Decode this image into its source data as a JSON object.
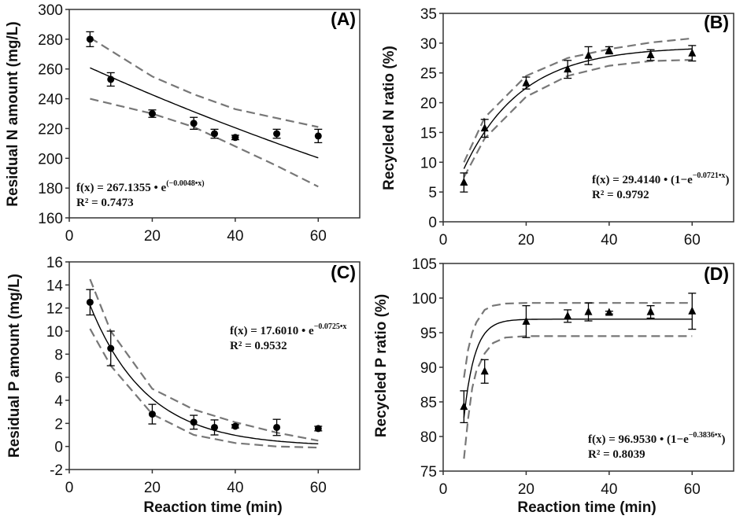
{
  "chart_data": [
    {
      "type": "scatter",
      "panel_label": "(A)",
      "xlabel": "",
      "ylabel": "Residual N amount (mg/L)",
      "xlim": [
        0,
        70
      ],
      "ylim": [
        160,
        300
      ],
      "xticks": [
        "0",
        "20",
        "40",
        "60"
      ],
      "xtick_values": [
        0,
        20,
        40,
        60
      ],
      "yticks": [
        "160",
        "180",
        "200",
        "220",
        "240",
        "260",
        "280",
        "300"
      ],
      "ytick_values": [
        160,
        180,
        200,
        220,
        240,
        260,
        280,
        300
      ],
      "marker": "circle",
      "x": [
        5,
        10,
        20,
        30,
        35,
        40,
        50,
        60
      ],
      "y": [
        280,
        253,
        230,
        223.5,
        216.5,
        214,
        216.5,
        215
      ],
      "error": [
        5,
        4.5,
        2.5,
        4,
        3,
        1.5,
        3,
        4.5
      ],
      "fit": {
        "model": "exp_decay",
        "a": 267.1355,
        "b": 0.0048,
        "x_range": [
          5,
          60
        ]
      },
      "band_upper": {
        "x": [
          5,
          20,
          30,
          40,
          50,
          60
        ],
        "y": [
          281,
          255,
          243,
          233,
          227,
          221
        ]
      },
      "band_lower": {
        "x": [
          5,
          20,
          30,
          40,
          50,
          60
        ],
        "y": [
          240,
          230,
          221,
          208,
          195,
          181
        ]
      },
      "equation": {
        "main": "f(x) = 267.1355 • e",
        "sup": "(−0.0048•x)",
        "tail": "",
        "r2": "R² = 0.7473"
      }
    },
    {
      "type": "scatter",
      "panel_label": "(B)",
      "xlabel": "",
      "ylabel": "Recycled N ratio (%)",
      "xlim": [
        0,
        70
      ],
      "ylim": [
        0,
        35
      ],
      "xticks": [
        "0",
        "20",
        "40",
        "60"
      ],
      "xtick_values": [
        0,
        20,
        40,
        60
      ],
      "yticks": [
        "0",
        "5",
        "10",
        "15",
        "20",
        "25",
        "30",
        "35"
      ],
      "ytick_values": [
        0,
        5,
        10,
        15,
        20,
        25,
        30,
        35
      ],
      "marker": "triangle",
      "x": [
        5,
        10,
        20,
        30,
        35,
        40,
        50,
        60
      ],
      "y": [
        6.6,
        15.7,
        23.3,
        25.6,
        27.9,
        28.8,
        28.0,
        28.3
      ],
      "error": [
        1.6,
        1.5,
        1.0,
        1.5,
        1.5,
        0.6,
        0.9,
        1.3
      ],
      "fit": {
        "model": "exp_rise",
        "a": 29.414,
        "b": 0.0721,
        "x_range": [
          5,
          60
        ]
      },
      "band_upper": {
        "x": [
          5,
          10,
          20,
          30,
          40,
          50,
          60
        ],
        "y": [
          10,
          17.5,
          24.5,
          27.5,
          29,
          30.1,
          30.8
        ]
      },
      "band_lower": {
        "x": [
          5,
          10,
          20,
          30,
          40,
          50,
          60
        ],
        "y": [
          7.5,
          14,
          21,
          24.5,
          26.2,
          27,
          27.2
        ]
      },
      "equation": {
        "main": "f(x) = 29.4140 • (1−e",
        "sup": "−0.0721•x",
        "tail": ")",
        "r2": "R² = 0.9792"
      }
    },
    {
      "type": "scatter",
      "panel_label": "(C)",
      "xlabel": "Reaction time (min)",
      "ylabel": "Residual P amount (mg/L)",
      "xlim": [
        0,
        70
      ],
      "ylim": [
        -2,
        16
      ],
      "xticks": [
        "0",
        "20",
        "40",
        "60"
      ],
      "xtick_values": [
        0,
        20,
        40,
        60
      ],
      "yticks": [
        "-2",
        "0",
        "2",
        "4",
        "6",
        "8",
        "10",
        "12",
        "14",
        "16"
      ],
      "ytick_values": [
        -2,
        0,
        2,
        4,
        6,
        8,
        10,
        12,
        14,
        16
      ],
      "marker": "circle",
      "x": [
        5,
        10,
        20,
        30,
        35,
        40,
        50,
        60
      ],
      "y": [
        12.5,
        8.5,
        2.8,
        2.1,
        1.65,
        1.75,
        1.65,
        1.55
      ],
      "error": [
        1.1,
        1.5,
        0.85,
        0.6,
        0.65,
        0.15,
        0.7,
        0.2
      ],
      "fit": {
        "model": "exp_decay",
        "a": 17.601,
        "b": 0.0725,
        "x_range": [
          5,
          60
        ]
      },
      "band_upper": {
        "x": [
          5,
          10,
          20,
          30,
          40,
          50,
          60
        ],
        "y": [
          14.5,
          10,
          5,
          3.2,
          2.1,
          1.2,
          0.5
        ]
      },
      "band_lower": {
        "x": [
          5,
          10,
          20,
          30,
          40,
          50,
          60
        ],
        "y": [
          10.2,
          7,
          2.8,
          1.0,
          0.3,
          0.0,
          -0.1
        ]
      },
      "equation": {
        "main": "f(x) = 17.6010 • e",
        "sup": "−0.0725•x",
        "tail": "",
        "r2": "R² = 0.9532"
      }
    },
    {
      "type": "scatter",
      "panel_label": "(D)",
      "xlabel": "Reaction time (min)",
      "ylabel": "Recycled P ratio (%)",
      "xlim": [
        0,
        70
      ],
      "ylim": [
        75,
        105
      ],
      "xticks": [
        "0",
        "20",
        "40",
        "60"
      ],
      "xtick_values": [
        0,
        20,
        40,
        60
      ],
      "yticks": [
        "75",
        "80",
        "85",
        "90",
        "95",
        "100",
        "105"
      ],
      "ytick_values": [
        75,
        80,
        85,
        90,
        95,
        100,
        105
      ],
      "marker": "triangle",
      "x": [
        5,
        10,
        20,
        30,
        35,
        40,
        50,
        60
      ],
      "y": [
        84.3,
        89.4,
        96.6,
        97.4,
        98.0,
        97.9,
        98.0,
        98.1
      ],
      "error": [
        2.3,
        1.7,
        2.3,
        0.9,
        1.3,
        0.2,
        0.9,
        2.6
      ],
      "fit": {
        "model": "exp_rise",
        "a": 96.953,
        "b": 0.3836,
        "x_range": [
          5,
          60
        ]
      },
      "band_upper": {
        "x": [
          5,
          6,
          7,
          8,
          10,
          12,
          15,
          20,
          60
        ],
        "y": [
          88.5,
          92.5,
          95,
          96.5,
          98.3,
          98.9,
          99.2,
          99.3,
          99.3
        ]
      },
      "band_lower": {
        "x": [
          5,
          6,
          7,
          8,
          10,
          12,
          15,
          20,
          60
        ],
        "y": [
          76.8,
          82.5,
          87,
          89.5,
          92,
          93.5,
          94.3,
          94.5,
          94.5
        ]
      },
      "equation": {
        "main": "f(x) = 96.9530 • (1−e",
        "sup": "−0.3836•x",
        "tail": ")",
        "r2": "R² = 0.8039"
      }
    }
  ]
}
